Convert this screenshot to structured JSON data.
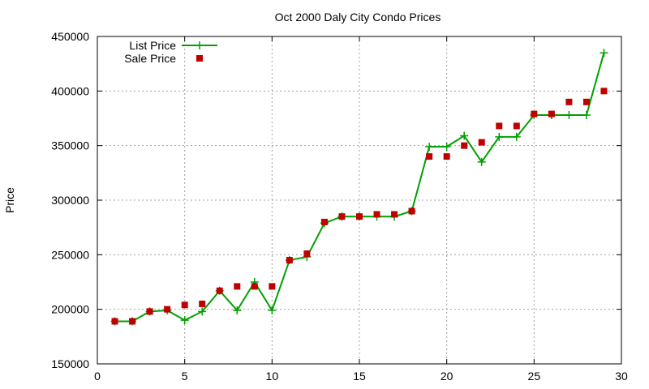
{
  "chart_data": {
    "type": "line",
    "title": "Oct 2000 Daly City Condo Prices",
    "xlabel": "",
    "ylabel": "Price",
    "xlim": [
      0,
      30
    ],
    "ylim": [
      150000,
      450000
    ],
    "xticks": [
      0,
      5,
      10,
      15,
      20,
      25,
      30
    ],
    "yticks": [
      150000,
      200000,
      250000,
      300000,
      350000,
      400000,
      450000
    ],
    "grid": true,
    "legend_position": "top-left",
    "series": [
      {
        "name": "List Price",
        "style": "linespoints",
        "color": "#00a000",
        "x": [
          1,
          2,
          3,
          4,
          5,
          6,
          7,
          8,
          9,
          10,
          11,
          12,
          13,
          14,
          15,
          16,
          17,
          18,
          19,
          20,
          21,
          22,
          23,
          24,
          25,
          26,
          27,
          28,
          29
        ],
        "values": [
          189000,
          189000,
          198000,
          199000,
          190000,
          198000,
          217000,
          199000,
          225000,
          199000,
          245000,
          248000,
          279000,
          285000,
          285000,
          285000,
          285000,
          290000,
          349000,
          349000,
          359000,
          335000,
          358000,
          358000,
          378000,
          378000,
          378000,
          378000,
          435000
        ]
      },
      {
        "name": "Sale Price",
        "style": "points",
        "color": "#c00000",
        "x": [
          1,
          2,
          3,
          4,
          5,
          6,
          7,
          8,
          9,
          10,
          11,
          12,
          13,
          14,
          15,
          16,
          17,
          18,
          19,
          20,
          21,
          22,
          23,
          24,
          25,
          26,
          27,
          28,
          29
        ],
        "values": [
          189000,
          189000,
          198000,
          200000,
          204000,
          205000,
          217000,
          221000,
          221000,
          221000,
          245000,
          251000,
          280000,
          285000,
          285000,
          287000,
          287000,
          290000,
          340000,
          340000,
          350000,
          353000,
          368000,
          368000,
          379000,
          379000,
          390000,
          390000,
          400000
        ]
      }
    ]
  }
}
